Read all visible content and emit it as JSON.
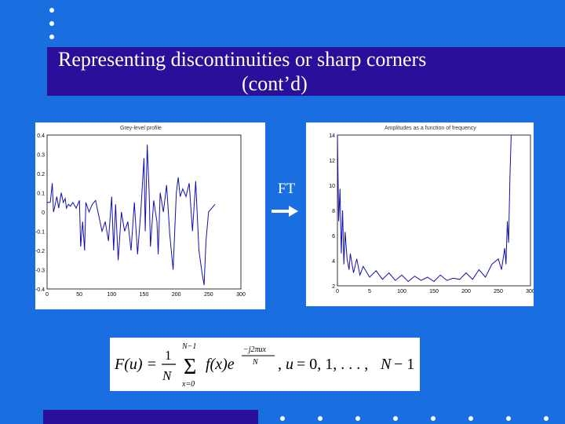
{
  "slide": {
    "title_line1": "Representing discontinuities or sharp corners",
    "title_line2": "(cont’d)",
    "ft_label": "FT",
    "colors": {
      "background": "#1a6fe0",
      "title_bar": "#2a0f9a",
      "plot_line": "#1010b0"
    }
  },
  "left_plot": {
    "title": "Grey-level profile",
    "x_ticks": [
      "0",
      "50",
      "100",
      "150",
      "200",
      "250",
      "300"
    ],
    "y_ticks": [
      "0.4",
      "0.3",
      "0.2",
      "0.1",
      "0",
      "-0.1",
      "-0.2",
      "-0.3",
      "-0.4"
    ]
  },
  "right_plot": {
    "title": "Amplitudes as a function of frequency",
    "x_ticks": [
      "0",
      "5",
      "100",
      "150",
      "200",
      "250",
      "300"
    ],
    "y_ticks": [
      "14",
      "12",
      "10",
      "8",
      "6",
      "4",
      "2"
    ]
  },
  "chart_data": [
    {
      "type": "line",
      "title": "Grey-level profile",
      "xlabel": "",
      "ylabel": "",
      "xlim": [
        0,
        300
      ],
      "ylim": [
        -0.4,
        0.4
      ],
      "grid": false,
      "x": [
        0,
        5,
        8,
        10,
        12,
        15,
        18,
        22,
        25,
        28,
        30,
        33,
        36,
        40,
        45,
        50,
        52,
        55,
        58,
        60,
        65,
        70,
        75,
        80,
        85,
        90,
        95,
        100,
        103,
        106,
        110,
        115,
        120,
        125,
        130,
        135,
        140,
        145,
        150,
        152,
        155,
        158,
        160,
        165,
        170,
        172,
        175,
        180,
        185,
        190,
        195,
        200,
        203,
        206,
        210,
        215,
        220,
        225,
        230,
        235,
        240,
        243,
        246,
        250,
        255,
        260
      ],
      "series": [
        {
          "values": [
            0.05,
            0.05,
            0.15,
            0.0,
            0.03,
            0.08,
            0.02,
            0.1,
            0.05,
            0.07,
            0.02,
            0.04,
            0.03,
            0.05,
            0.02,
            0.06,
            -0.18,
            -0.05,
            -0.2,
            0.05,
            0.0,
            0.04,
            0.06,
            -0.02,
            -0.1,
            -0.05,
            -0.15,
            0.08,
            -0.2,
            0.04,
            -0.25,
            0.0,
            -0.1,
            -0.05,
            -0.2,
            0.05,
            -0.22,
            0.0,
            0.28,
            -0.1,
            0.35,
            0.1,
            -0.18,
            0.06,
            -0.05,
            -0.22,
            0.1,
            0.0,
            0.14,
            -0.12,
            -0.3,
            0.1,
            0.18,
            0.08,
            0.12,
            0.08,
            0.15,
            -0.1,
            0.16,
            -0.2,
            -0.32,
            -0.38,
            -0.15,
            0.0,
            0.02,
            0.04
          ]
        }
      ]
    },
    {
      "type": "line",
      "title": "Amplitudes as a function of frequency",
      "xlabel": "",
      "ylabel": "",
      "xlim": [
        0,
        300
      ],
      "ylim": [
        0,
        14
      ],
      "grid": false,
      "x": [
        0,
        2,
        4,
        6,
        8,
        10,
        12,
        15,
        18,
        20,
        25,
        30,
        35,
        40,
        50,
        60,
        70,
        80,
        90,
        100,
        110,
        120,
        130,
        140,
        150,
        160,
        170,
        180,
        190,
        200,
        210,
        220,
        230,
        240,
        250,
        255,
        260,
        262,
        264,
        266,
        268,
        270
      ],
      "series": [
        {
          "values": [
            14,
            6,
            9,
            3,
            7,
            2,
            5,
            2.5,
            1.5,
            3,
            1.2,
            2.5,
            1,
            1.8,
            0.8,
            1.4,
            0.6,
            1.2,
            0.5,
            1.0,
            0.4,
            0.9,
            0.5,
            0.8,
            0.4,
            1.0,
            0.5,
            0.7,
            0.6,
            1.2,
            0.6,
            1.5,
            0.8,
            2.0,
            2.5,
            1.5,
            3.5,
            2.0,
            6,
            4,
            10,
            14
          ]
        }
      ]
    }
  ],
  "formula": "F(u) = (1/N) Σ_{x=0}^{N-1} f(x) e^{-j2πux/N},  u = 0, 1, ..., N-1"
}
